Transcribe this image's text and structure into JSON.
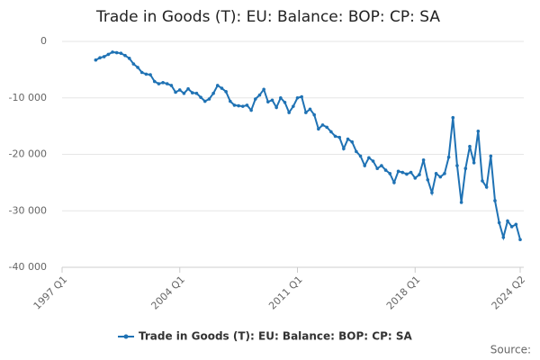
{
  "chart_data": {
    "type": "line",
    "title": "Trade in Goods (T): EU: Balance: BOP: CP: SA",
    "categories": [
      "1997 Q1",
      null,
      null,
      null,
      null,
      null,
      null,
      null,
      null,
      null,
      null,
      null,
      null,
      null,
      null,
      null,
      null,
      null,
      null,
      null,
      null,
      null,
      null,
      null,
      null,
      null,
      null,
      null,
      "2004 Q1",
      null,
      null,
      null,
      null,
      null,
      null,
      null,
      null,
      null,
      null,
      null,
      null,
      null,
      null,
      null,
      null,
      null,
      null,
      null,
      null,
      null,
      null,
      null,
      null,
      null,
      null,
      null,
      "2011 Q1",
      null,
      null,
      null,
      null,
      null,
      null,
      null,
      null,
      null,
      null,
      null,
      null,
      null,
      null,
      null,
      null,
      null,
      null,
      null,
      null,
      null,
      null,
      null,
      null,
      null,
      null,
      null,
      "2018 Q1",
      null,
      null,
      null,
      null,
      null,
      null,
      null,
      null,
      null,
      null,
      null,
      null,
      null,
      null,
      null,
      null,
      null,
      null,
      null,
      null,
      null,
      null,
      null,
      null,
      "2024 Q2"
    ],
    "series": [
      {
        "name": "Trade in Goods (T): EU: Balance: BOP: CP: SA",
        "color": "#1f72b4",
        "values": [
          null,
          null,
          null,
          null,
          null,
          null,
          null,
          null,
          -3300,
          -2900,
          -2700,
          -2300,
          -1900,
          -2000,
          -2100,
          -2500,
          -3000,
          -4000,
          -4600,
          -5500,
          -5800,
          -5900,
          -7100,
          -7500,
          -7300,
          -7500,
          -7800,
          -9000,
          -8600,
          -9200,
          -8400,
          -9100,
          -9200,
          -9900,
          -10600,
          -10200,
          -9200,
          -7800,
          -8300,
          -8900,
          -10600,
          -11300,
          -11400,
          -11500,
          -11300,
          -12200,
          -10200,
          -9500,
          -8500,
          -10700,
          -10400,
          -11700,
          -10000,
          -10800,
          -12600,
          -11500,
          -10000,
          -9800,
          -12600,
          -12000,
          -13000,
          -15500,
          -14800,
          -15200,
          -16000,
          -16800,
          -17000,
          -19000,
          -17300,
          -17800,
          -19500,
          -20300,
          -22000,
          -20600,
          -21200,
          -22500,
          -22000,
          -22800,
          -23400,
          -25000,
          -23000,
          -23200,
          -23500,
          -23200,
          -24200,
          -23600,
          -21000,
          -24500,
          -26800,
          -23400,
          -24000,
          -23400,
          -20500,
          -13500,
          -22000,
          -28500,
          -22500,
          -18600,
          -21500,
          -15900,
          -24700,
          -25800,
          -20300,
          -28200,
          -32100,
          -34700,
          -31800,
          -32800,
          -32400,
          -35100
        ]
      }
    ],
    "ylim": [
      -40000,
      0
    ],
    "yticks": [
      0,
      {
        "value": -10000,
        "label": "-10 000"
      },
      {
        "value": -20000,
        "label": "-20 000"
      },
      {
        "value": -30000,
        "label": "-30 000"
      },
      {
        "value": -40000,
        "label": "-40 000"
      }
    ],
    "grid": true,
    "legend": "bottom",
    "source_label": "Source:"
  }
}
